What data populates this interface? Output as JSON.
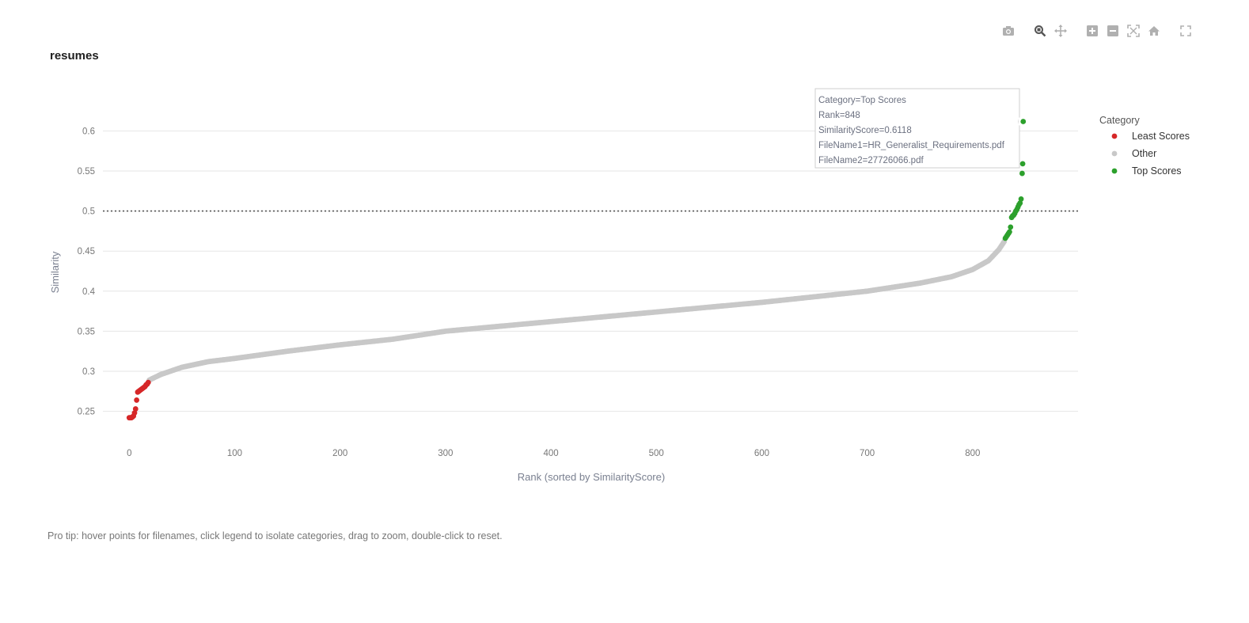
{
  "chart_data": {
    "type": "scatter",
    "title": "resumes",
    "xlabel": "Rank (sorted by SimilarityScore)",
    "ylabel": "Similarity",
    "xlim": [
      -25,
      900
    ],
    "ylim": [
      0.215,
      0.635
    ],
    "x_ticks": [
      0,
      100,
      200,
      300,
      400,
      500,
      600,
      700,
      800
    ],
    "y_ticks": [
      0.25,
      0.3,
      0.35,
      0.4,
      0.45,
      0.5,
      0.55,
      0.6
    ],
    "threshold": {
      "y": 0.5,
      "style": "dotted"
    },
    "grid": true,
    "legend": {
      "title": "Category",
      "position": "right"
    },
    "series": [
      {
        "name": "Least Scores",
        "color": "#d62728",
        "points": [
          [
            0,
            0.242
          ],
          [
            1,
            0.242
          ],
          [
            2,
            0.242
          ],
          [
            3,
            0.243
          ],
          [
            4,
            0.244
          ],
          [
            5,
            0.248
          ],
          [
            6,
            0.253
          ],
          [
            7,
            0.264
          ],
          [
            8,
            0.274
          ],
          [
            9,
            0.275
          ],
          [
            10,
            0.276
          ],
          [
            11,
            0.277
          ],
          [
            12,
            0.278
          ],
          [
            13,
            0.279
          ],
          [
            14,
            0.28
          ],
          [
            15,
            0.281
          ],
          [
            16,
            0.283
          ],
          [
            17,
            0.284
          ],
          [
            18,
            0.286
          ]
        ]
      },
      {
        "name": "Other",
        "color": "#c8c8c8",
        "curve": [
          [
            19,
            0.289
          ],
          [
            30,
            0.296
          ],
          [
            50,
            0.305
          ],
          [
            75,
            0.312
          ],
          [
            100,
            0.316
          ],
          [
            150,
            0.325
          ],
          [
            200,
            0.333
          ],
          [
            250,
            0.34
          ],
          [
            300,
            0.35
          ],
          [
            350,
            0.356
          ],
          [
            400,
            0.362
          ],
          [
            450,
            0.368
          ],
          [
            500,
            0.374
          ],
          [
            550,
            0.38
          ],
          [
            600,
            0.386
          ],
          [
            650,
            0.393
          ],
          [
            700,
            0.4
          ],
          [
            750,
            0.41
          ],
          [
            780,
            0.418
          ],
          [
            800,
            0.427
          ],
          [
            815,
            0.438
          ],
          [
            825,
            0.452
          ],
          [
            830,
            0.462
          ]
        ]
      },
      {
        "name": "Top Scores",
        "color": "#2ca02c",
        "points": [
          [
            831,
            0.466
          ],
          [
            832,
            0.468
          ],
          [
            833,
            0.47
          ],
          [
            834,
            0.472
          ],
          [
            835,
            0.474
          ],
          [
            836,
            0.48
          ],
          [
            837,
            0.492
          ],
          [
            838,
            0.494
          ],
          [
            839,
            0.495
          ],
          [
            840,
            0.497
          ],
          [
            841,
            0.5
          ],
          [
            842,
            0.502
          ],
          [
            843,
            0.505
          ],
          [
            844,
            0.508
          ],
          [
            845,
            0.51
          ],
          [
            846,
            0.515
          ],
          [
            847,
            0.547
          ],
          [
            847.5,
            0.559
          ],
          [
            848,
            0.6118
          ]
        ]
      }
    ],
    "hover": {
      "x": 848,
      "y": 0.6118,
      "lines": [
        "Category=Top Scores",
        "Rank=848",
        "SimilarityScore=0.6118",
        "FileName1=HR_Generalist_Requirements.pdf",
        "FileName2=27726066.pdf"
      ]
    }
  },
  "modebar": [
    "camera-icon",
    "zoom-icon",
    "pan-icon",
    "zoom-in-icon",
    "zoom-out-icon",
    "autoscale-icon",
    "reset-axes-icon",
    "fullscreen-icon"
  ],
  "tip": "Pro tip: hover points for filenames, click legend to isolate categories, drag to zoom, double-click to reset."
}
